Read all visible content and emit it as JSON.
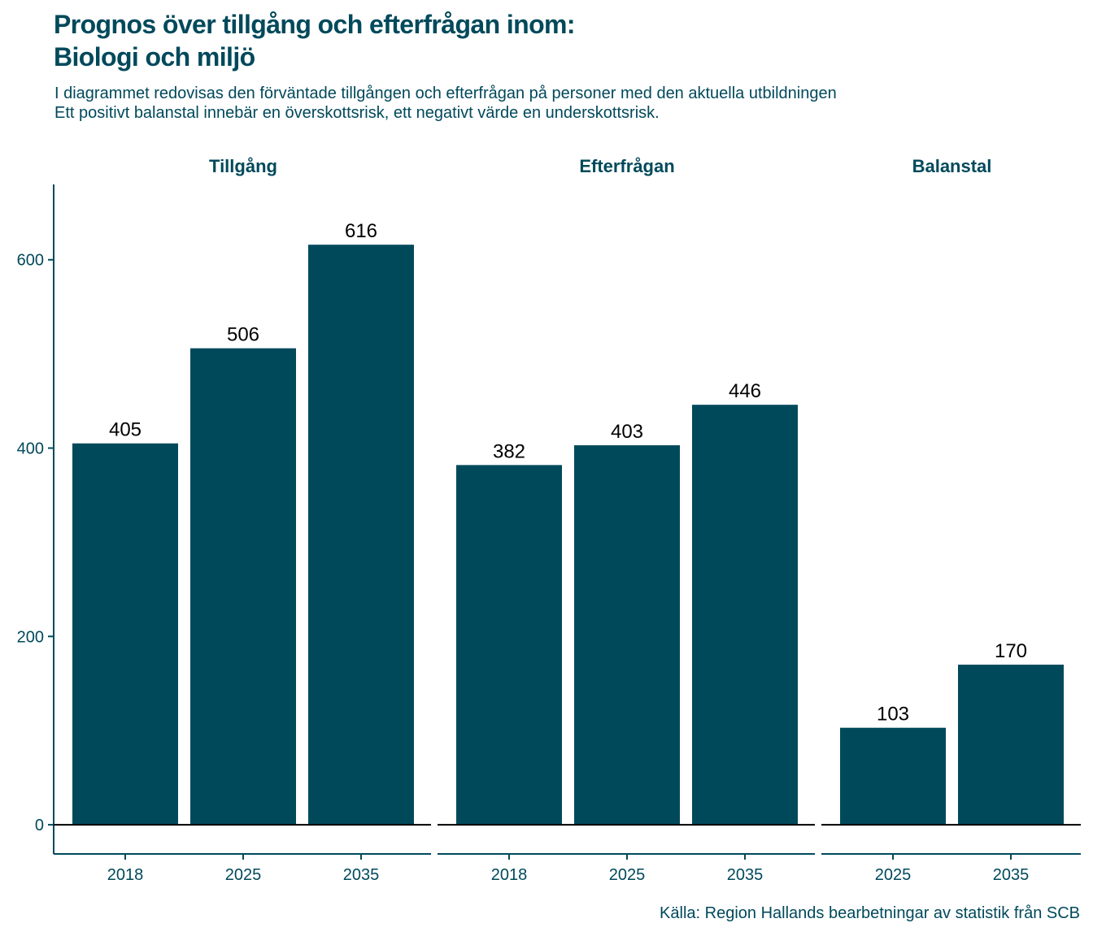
{
  "title": {
    "line1": "Prognos över tillgång och efterfrågan inom:",
    "line2": "Biologi och miljö"
  },
  "subtitle": {
    "line1": "I diagrammet redovisas den förväntade tillgången och efterfrågan på personer med den aktuella utbildningen",
    "line2": "Ett positivt balanstal innebär en överskottsrisk, ett negativt värde en underskottsrisk."
  },
  "caption": "Källa: Region Hallands bearbetningar av statistik från SCB",
  "colors": {
    "bar": "#00495B",
    "text": "#00495B",
    "data_label": "#000000",
    "axis": "#00495B",
    "zero_line": "#000000"
  },
  "chart_data": {
    "type": "bar",
    "facets": [
      {
        "name": "Tillgång",
        "categories": [
          "2018",
          "2025",
          "2035"
        ],
        "values": [
          405,
          506,
          616
        ]
      },
      {
        "name": "Efterfrågan",
        "categories": [
          "2018",
          "2025",
          "2035"
        ],
        "values": [
          382,
          403,
          446
        ]
      },
      {
        "name": "Balanstal",
        "categories": [
          "2025",
          "2035"
        ],
        "values": [
          103,
          170
        ]
      }
    ],
    "y_ticks": [
      0,
      200,
      400,
      600
    ],
    "ylim": [
      -31,
      680
    ],
    "data_labels": true,
    "grid": false,
    "shared_y_axis": true,
    "free_x_scales": true
  }
}
